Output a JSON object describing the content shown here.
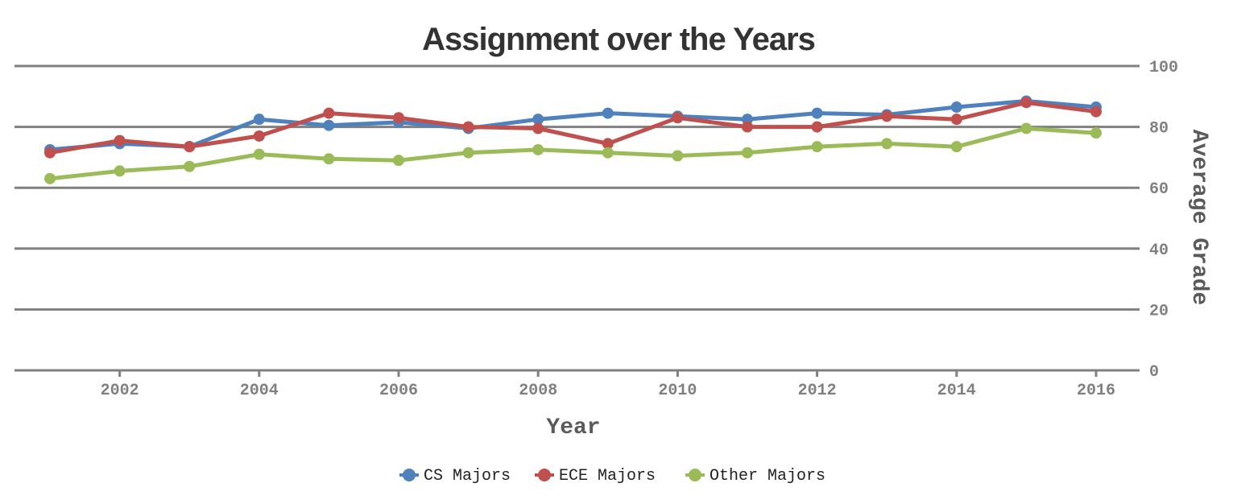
{
  "chart_data": {
    "type": "line",
    "title": "Assignment over the Years",
    "xlabel": "Year",
    "ylabel": "Average Grade",
    "xlim": [
      2001,
      2016
    ],
    "ylim": [
      0,
      100
    ],
    "x_ticks": [
      2002,
      2004,
      2006,
      2008,
      2010,
      2012,
      2014,
      2016
    ],
    "y_ticks": [
      0,
      20,
      40,
      60,
      80,
      100
    ],
    "y_axis_side": "right",
    "grid": true,
    "legend_position": "bottom-center",
    "x": [
      2001,
      2002,
      2003,
      2004,
      2005,
      2006,
      2007,
      2008,
      2009,
      2010,
      2011,
      2012,
      2013,
      2014,
      2015,
      2016
    ],
    "series": [
      {
        "name": "CS Majors",
        "color": "#4f81bd",
        "values": [
          72.5,
          74.5,
          73.5,
          82.5,
          80.5,
          81.5,
          79.5,
          82.5,
          84.5,
          83.5,
          82.5,
          84.5,
          84,
          86.5,
          88.5,
          86.5
        ]
      },
      {
        "name": "ECE Majors",
        "color": "#c0504d",
        "values": [
          71.5,
          75.5,
          73.5,
          77,
          84.5,
          83,
          80,
          79.5,
          74.5,
          83,
          80,
          80,
          83.5,
          82.5,
          88,
          85
        ]
      },
      {
        "name": "Other Majors",
        "color": "#9bbb59",
        "values": [
          63,
          65.5,
          67,
          71,
          69.5,
          69,
          71.5,
          72.5,
          71.5,
          70.5,
          71.5,
          73.5,
          74.5,
          73.5,
          79.5,
          78
        ]
      }
    ]
  }
}
